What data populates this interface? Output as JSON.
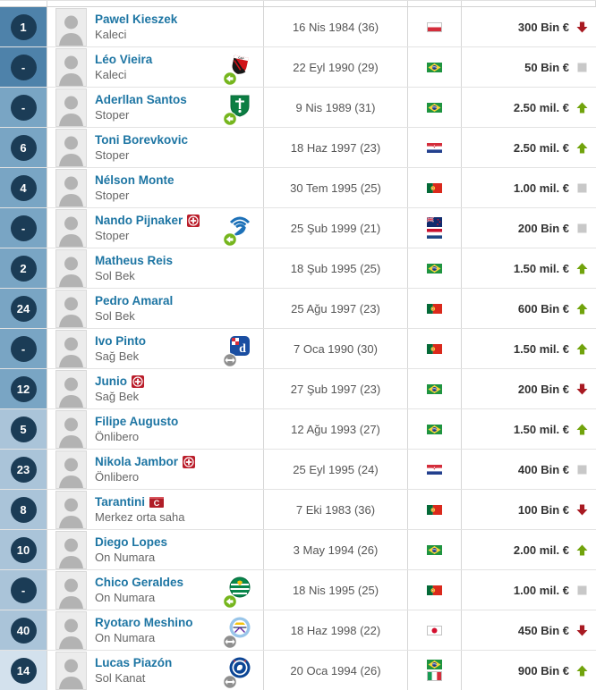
{
  "colors": {
    "link_blue": "#1d75a3",
    "trend_up": "#71a30c",
    "trend_down": "#a81a22",
    "trend_same": "#c8c8c8",
    "group_gk": "#4e82aa",
    "group_def": "#79a5c4",
    "group_mid": "#aac4d9",
    "group_att": "#d3e1ed",
    "number_circle_navy": "#1b3c56"
  },
  "rows": [
    {
      "number": "1",
      "name": "Pawel Kieszek",
      "position": "Kaleci",
      "group": "gk",
      "badge": null,
      "club": null,
      "transfer": null,
      "birth": "16 Nis 1984 (36)",
      "flags": [
        "poland"
      ],
      "value": "300 Bin €",
      "trend": "down"
    },
    {
      "number": "-",
      "name": "Léo Vieira",
      "position": "Kaleci",
      "group": "gk",
      "badge": null,
      "club": "athletico-paranaense",
      "transfer": "in",
      "birth": "22 Eyl 1990 (29)",
      "flags": [
        "brazil"
      ],
      "value": "50 Bin €",
      "trend": "same"
    },
    {
      "number": "-",
      "name": "Aderllan Santos",
      "position": "Stoper",
      "group": "def",
      "badge": null,
      "club": "al-ahli",
      "transfer": "in",
      "birth": "9 Nis 1989 (31)",
      "flags": [
        "brazil"
      ],
      "value": "2.50 mil. €",
      "trend": "up"
    },
    {
      "number": "6",
      "name": "Toni Borevkovic",
      "position": "Stoper",
      "group": "def",
      "badge": null,
      "club": null,
      "transfer": null,
      "birth": "18 Haz 1997 (23)",
      "flags": [
        "croatia"
      ],
      "value": "2.50 mil. €",
      "trend": "up"
    },
    {
      "number": "4",
      "name": "Nélson Monte",
      "position": "Stoper",
      "group": "def",
      "badge": null,
      "club": null,
      "transfer": null,
      "birth": "30 Tem 1995 (25)",
      "flags": [
        "portugal"
      ],
      "value": "1.00 mil. €",
      "trend": "same"
    },
    {
      "number": "-",
      "name": "Nando Pijnaker",
      "position": "Stoper",
      "group": "def",
      "badge": "injury",
      "club": "zwolle",
      "transfer": "in",
      "birth": "25 Şub 1999 (21)",
      "flags": [
        "new-zealand",
        "netherlands"
      ],
      "value": "200 Bin €",
      "trend": "same"
    },
    {
      "number": "2",
      "name": "Matheus Reis",
      "position": "Sol Bek",
      "group": "def",
      "badge": null,
      "club": null,
      "transfer": null,
      "birth": "18 Şub 1995 (25)",
      "flags": [
        "brazil"
      ],
      "value": "1.50 mil. €",
      "trend": "up"
    },
    {
      "number": "24",
      "name": "Pedro Amaral",
      "position": "Sol Bek",
      "group": "def",
      "badge": null,
      "club": null,
      "transfer": null,
      "birth": "25 Ağu 1997 (23)",
      "flags": [
        "portugal"
      ],
      "value": "600 Bin €",
      "trend": "up"
    },
    {
      "number": "-",
      "name": "Ivo Pinto",
      "position": "Sağ Bek",
      "group": "def",
      "badge": null,
      "club": "dinamo-zagreb",
      "transfer": "two-way",
      "birth": "7 Oca 1990 (30)",
      "flags": [
        "portugal"
      ],
      "value": "1.50 mil. €",
      "trend": "up"
    },
    {
      "number": "12",
      "name": "Junio",
      "position": "Sağ Bek",
      "group": "def",
      "badge": "injury",
      "club": null,
      "transfer": null,
      "birth": "27 Şub 1997 (23)",
      "flags": [
        "brazil"
      ],
      "value": "200 Bin €",
      "trend": "down"
    },
    {
      "number": "5",
      "name": "Filipe Augusto",
      "position": "Önlibero",
      "group": "mid",
      "badge": null,
      "club": null,
      "transfer": null,
      "birth": "12 Ağu 1993 (27)",
      "flags": [
        "brazil"
      ],
      "value": "1.50 mil. €",
      "trend": "up"
    },
    {
      "number": "23",
      "name": "Nikola Jambor",
      "position": "Önlibero",
      "group": "mid",
      "badge": "injury",
      "club": null,
      "transfer": null,
      "birth": "25 Eyl 1995 (24)",
      "flags": [
        "croatia"
      ],
      "value": "400 Bin €",
      "trend": "same"
    },
    {
      "number": "8",
      "name": "Tarantini",
      "position": "Merkez orta saha",
      "group": "mid",
      "badge": "captain",
      "club": null,
      "transfer": null,
      "birth": "7 Eki 1983 (36)",
      "flags": [
        "portugal"
      ],
      "value": "100 Bin €",
      "trend": "down"
    },
    {
      "number": "10",
      "name": "Diego Lopes",
      "position": "On Numara",
      "group": "mid",
      "badge": null,
      "club": null,
      "transfer": null,
      "birth": "3 May 1994 (26)",
      "flags": [
        "brazil"
      ],
      "value": "2.00 mil. €",
      "trend": "up"
    },
    {
      "number": "-",
      "name": "Chico Geraldes",
      "position": "On Numara",
      "group": "mid",
      "badge": null,
      "club": "sporting-cp",
      "transfer": "in",
      "birth": "18 Nis 1995 (25)",
      "flags": [
        "portugal"
      ],
      "value": "1.00 mil. €",
      "trend": "same"
    },
    {
      "number": "40",
      "name": "Ryotaro Meshino",
      "position": "On Numara",
      "group": "mid",
      "badge": null,
      "club": "manchester-city",
      "transfer": "two-way",
      "birth": "18 Haz 1998 (22)",
      "flags": [
        "japan"
      ],
      "value": "450 Bin €",
      "trend": "down"
    },
    {
      "number": "14",
      "name": "Lucas Piazón",
      "position": "Sol Kanat",
      "group": "att",
      "badge": null,
      "club": "chelsea",
      "transfer": "two-way",
      "birth": "20 Oca 1994 (26)",
      "flags": [
        "brazil",
        "italy"
      ],
      "value": "900 Bin €",
      "trend": "up"
    }
  ]
}
